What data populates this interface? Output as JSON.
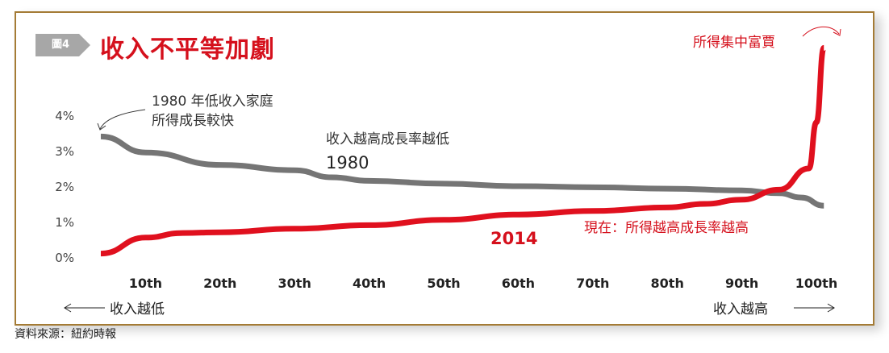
{
  "badge": "圖4",
  "chart_data": {
    "type": "line",
    "title": "收入不平等加劇",
    "xlabel": "",
    "ylabel": "",
    "ylim": [
      0,
      5.9
    ],
    "xlim": [
      0,
      103
    ],
    "yticks": [
      "0%",
      "1%",
      "2%",
      "3%",
      "4%"
    ],
    "ytick_values": [
      0,
      1,
      2,
      3,
      4
    ],
    "xticks": [
      "10th",
      "20th",
      "30th",
      "40th",
      "50th",
      "60th",
      "70th",
      "80th",
      "90th",
      "100th"
    ],
    "xtick_values": [
      10,
      20,
      30,
      40,
      50,
      60,
      70,
      80,
      90,
      100
    ],
    "grid": false,
    "series": [
      {
        "name": "1980",
        "color": "#757575",
        "x": [
          4,
          10,
          20,
          30,
          35,
          40,
          50,
          60,
          70,
          80,
          90,
          95,
          98,
          101
        ],
        "y": [
          3.4,
          2.95,
          2.6,
          2.45,
          2.25,
          2.15,
          2.07,
          2.0,
          1.97,
          1.93,
          1.88,
          1.8,
          1.68,
          1.45
        ]
      },
      {
        "name": "2014",
        "color": "#e0101e",
        "x": [
          4,
          10,
          15,
          20,
          30,
          40,
          50,
          60,
          70,
          80,
          85,
          90,
          95,
          99,
          100,
          101
        ],
        "y": [
          0.1,
          0.55,
          0.68,
          0.7,
          0.8,
          0.9,
          1.05,
          1.2,
          1.3,
          1.4,
          1.5,
          1.62,
          1.9,
          2.5,
          3.8,
          5.9
        ]
      }
    ],
    "annotations": {
      "low_income": [
        "1980 年低收入家庭",
        "所得成長較快"
      ],
      "higher_lower": "收入越高成長率越低",
      "label_1980": "1980",
      "label_2014": "2014",
      "now": "現在：所得越高成長率越高",
      "concentrate": "所得集中富賈",
      "left_arrow": "收入越低",
      "right_arrow": "收入越高"
    }
  },
  "source": "資料來源：紐約時報"
}
